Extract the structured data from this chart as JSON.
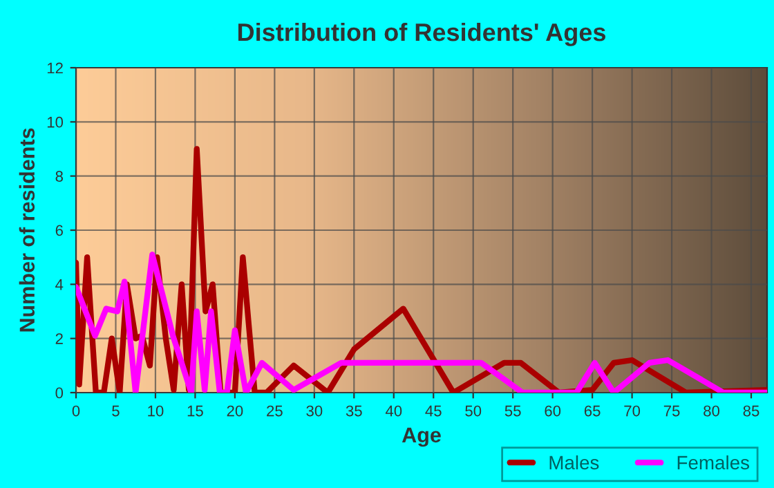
{
  "chart_data": {
    "type": "line",
    "title": "Distribution of Residents' Ages",
    "xlabel": "Age",
    "ylabel": "Number of residents",
    "xlim": [
      0,
      87
    ],
    "xticks": [
      0,
      5,
      10,
      15,
      20,
      25,
      30,
      35,
      40,
      45,
      50,
      55,
      60,
      65,
      70,
      75,
      80,
      85
    ],
    "ylim": [
      0,
      12
    ],
    "yticks": [
      0,
      2,
      4,
      6,
      8,
      10,
      12
    ],
    "grid": true,
    "legend": "bottom right",
    "marker": "none",
    "line_style": "solid",
    "series": [
      {
        "name": "Males",
        "color": "#aa0000",
        "x": [
          0,
          0.4,
          1.4,
          2.5,
          3.5,
          4.5,
          5.5,
          6.4,
          7.5,
          8.3,
          9.3,
          10.2,
          11.3,
          12.3,
          13.3,
          14.2,
          15.2,
          16.3,
          17.2,
          18.2,
          20,
          21,
          22.5,
          24,
          27.4,
          31.7,
          35,
          41.2,
          47.5,
          53.9,
          56,
          60.8,
          65,
          67.7,
          70,
          76.8,
          87
        ],
        "values": [
          4.8,
          0.3,
          5,
          0,
          0,
          2,
          0,
          4,
          2,
          2.1,
          1,
          5,
          2,
          0.1,
          4,
          0.1,
          9,
          3,
          4,
          0,
          0,
          5,
          0,
          0,
          1,
          0,
          1.6,
          3.1,
          0,
          1.1,
          1.1,
          0,
          0.1,
          1.1,
          1.2,
          0,
          0.1
        ]
      },
      {
        "name": "Females",
        "color": "#ff00ff",
        "x": [
          0,
          2.4,
          3.8,
          5.2,
          6.1,
          7.5,
          9.6,
          11,
          12.2,
          14.5,
          15.2,
          16.2,
          17,
          18.1,
          19,
          20,
          21.4,
          23.4,
          27.4,
          33.4,
          51,
          56.2,
          63,
          65.3,
          67.7,
          72.2,
          74.5,
          81.5,
          87
        ],
        "values": [
          3.9,
          2.1,
          3.1,
          3,
          4.1,
          0,
          5.1,
          3.5,
          2.1,
          0,
          3,
          0.1,
          3,
          0,
          0,
          2.3,
          0,
          1.1,
          0.1,
          1.1,
          1.1,
          0,
          0,
          1.1,
          0,
          1.1,
          1.2,
          0,
          0
        ]
      }
    ]
  }
}
